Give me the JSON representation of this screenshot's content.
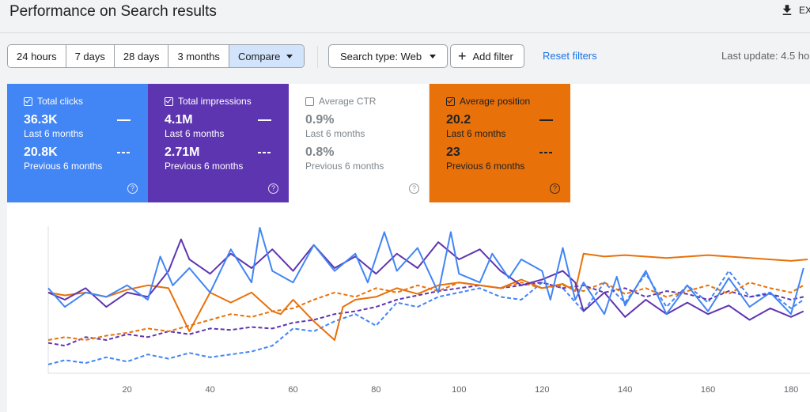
{
  "header": {
    "title": "Performance on Search results",
    "export_label": "EX",
    "export_icon": "download-icon"
  },
  "toolbar": {
    "ranges": [
      "24 hours",
      "7 days",
      "28 days",
      "3 months",
      "Compare"
    ],
    "selected_range": "Compare",
    "search_type": "Search type: Web",
    "add_filter": "Add filter",
    "reset_filters": "Reset filters",
    "last_update": "Last update: 4.5 ho"
  },
  "cards": {
    "clicks": {
      "label": "Total clicks",
      "checked": true,
      "value": "36.3K",
      "value_period": "Last 6 months",
      "prev_value": "20.8K",
      "prev_period": "Previous 6 months",
      "color": "#4285f4"
    },
    "impressions": {
      "label": "Total impressions",
      "checked": true,
      "value": "4.1M",
      "value_period": "Last 6 months",
      "prev_value": "2.71M",
      "prev_period": "Previous 6 months",
      "color": "#5e35b1"
    },
    "ctr": {
      "label": "Average CTR",
      "checked": false,
      "value": "0.9%",
      "value_period": "Last 6 months",
      "prev_value": "0.8%",
      "prev_period": "Previous 6 months",
      "color": "#80868b"
    },
    "position": {
      "label": "Average position",
      "checked": true,
      "value": "20.2",
      "value_period": "Last 6 months",
      "prev_value": "23",
      "prev_period": "Previous 6 months",
      "color": "#e8710a"
    }
  },
  "chart_data": {
    "type": "line",
    "x_ticks": [
      20,
      40,
      60,
      80,
      100,
      120,
      140,
      160,
      180
    ],
    "xlim": [
      1,
      184
    ],
    "ylim": [
      0,
      1
    ],
    "y_axis_labels": "not shown",
    "legend": "metric cards above chart",
    "series": [
      {
        "name": "Total clicks",
        "period": "Last 6 months",
        "style": "solid",
        "color": "#4285f4",
        "x": [
          1,
          5,
          10,
          15,
          20,
          25,
          28,
          31,
          35,
          40,
          45,
          50,
          52,
          55,
          60,
          65,
          70,
          75,
          78,
          82,
          85,
          90,
          95,
          98,
          100,
          105,
          108,
          112,
          115,
          120,
          122,
          125,
          128,
          130,
          135,
          138,
          140,
          145,
          150,
          155,
          160,
          165,
          170,
          175,
          180,
          183
        ],
        "y": [
          0.58,
          0.45,
          0.55,
          0.52,
          0.6,
          0.5,
          0.8,
          0.6,
          0.72,
          0.55,
          0.85,
          0.62,
          1.0,
          0.7,
          0.62,
          0.88,
          0.7,
          0.82,
          0.62,
          0.97,
          0.7,
          0.86,
          0.55,
          0.97,
          0.68,
          0.62,
          0.82,
          0.65,
          0.78,
          0.7,
          0.5,
          0.86,
          0.5,
          0.62,
          0.4,
          0.66,
          0.46,
          0.7,
          0.4,
          0.6,
          0.42,
          0.65,
          0.45,
          0.55,
          0.4,
          0.72
        ]
      },
      {
        "name": "Total impressions",
        "period": "Last 6 months",
        "style": "solid",
        "color": "#5e35b1",
        "x": [
          1,
          5,
          10,
          15,
          20,
          25,
          30,
          33,
          35,
          40,
          45,
          50,
          55,
          60,
          65,
          70,
          75,
          80,
          85,
          90,
          95,
          100,
          105,
          110,
          115,
          120,
          125,
          128,
          130,
          135,
          140,
          145,
          150,
          155,
          160,
          165,
          170,
          175,
          180,
          183
        ],
        "y": [
          0.55,
          0.5,
          0.58,
          0.45,
          0.55,
          0.52,
          0.7,
          0.92,
          0.78,
          0.68,
          0.82,
          0.72,
          0.85,
          0.7,
          0.88,
          0.72,
          0.8,
          0.68,
          0.82,
          0.72,
          0.9,
          0.78,
          0.85,
          0.7,
          0.6,
          0.64,
          0.7,
          0.62,
          0.42,
          0.55,
          0.38,
          0.5,
          0.4,
          0.48,
          0.4,
          0.46,
          0.36,
          0.44,
          0.38,
          0.42
        ]
      },
      {
        "name": "Average position",
        "period": "Last 6 months",
        "style": "solid",
        "color": "#e8710a",
        "x": [
          1,
          5,
          10,
          15,
          20,
          25,
          30,
          33,
          35,
          40,
          45,
          50,
          55,
          57,
          60,
          65,
          70,
          72,
          75,
          80,
          85,
          90,
          95,
          100,
          105,
          110,
          115,
          120,
          125,
          128,
          130,
          135,
          140,
          150,
          160,
          170,
          180,
          184
        ],
        "y": [
          0.55,
          0.53,
          0.55,
          0.52,
          0.57,
          0.6,
          0.58,
          0.4,
          0.28,
          0.55,
          0.48,
          0.55,
          0.42,
          0.4,
          0.5,
          0.35,
          0.22,
          0.45,
          0.5,
          0.52,
          0.58,
          0.54,
          0.6,
          0.62,
          0.6,
          0.58,
          0.64,
          0.58,
          0.61,
          0.56,
          0.82,
          0.8,
          0.81,
          0.79,
          0.81,
          0.79,
          0.77,
          0.78
        ]
      },
      {
        "name": "Total clicks",
        "period": "Previous 6 months",
        "style": "dashed",
        "color": "#4285f4",
        "x": [
          1,
          5,
          10,
          15,
          20,
          25,
          30,
          35,
          40,
          45,
          50,
          55,
          60,
          65,
          70,
          75,
          80,
          85,
          90,
          95,
          100,
          105,
          110,
          115,
          120,
          125,
          130,
          135,
          140,
          145,
          150,
          155,
          160,
          165,
          170,
          175,
          180,
          183
        ],
        "y": [
          0.05,
          0.08,
          0.06,
          0.1,
          0.07,
          0.12,
          0.09,
          0.13,
          0.1,
          0.12,
          0.14,
          0.18,
          0.3,
          0.28,
          0.35,
          0.4,
          0.32,
          0.48,
          0.45,
          0.52,
          0.55,
          0.58,
          0.52,
          0.5,
          0.62,
          0.58,
          0.42,
          0.62,
          0.48,
          0.68,
          0.45,
          0.6,
          0.48,
          0.7,
          0.52,
          0.55,
          0.44,
          0.5
        ]
      },
      {
        "name": "Total impressions",
        "period": "Previous 6 months",
        "style": "dashed",
        "color": "#5e35b1",
        "x": [
          1,
          5,
          10,
          15,
          20,
          25,
          30,
          35,
          40,
          45,
          50,
          55,
          60,
          65,
          70,
          75,
          80,
          85,
          90,
          95,
          100,
          105,
          110,
          115,
          120,
          125,
          130,
          135,
          140,
          145,
          150,
          155,
          160,
          165,
          170,
          175,
          180,
          183
        ],
        "y": [
          0.2,
          0.18,
          0.24,
          0.22,
          0.26,
          0.24,
          0.28,
          0.26,
          0.3,
          0.29,
          0.31,
          0.3,
          0.34,
          0.36,
          0.4,
          0.42,
          0.45,
          0.5,
          0.53,
          0.56,
          0.58,
          0.6,
          0.58,
          0.6,
          0.62,
          0.58,
          0.6,
          0.55,
          0.58,
          0.52,
          0.56,
          0.54,
          0.5,
          0.56,
          0.52,
          0.54,
          0.5,
          0.52
        ]
      },
      {
        "name": "Average position",
        "period": "Previous 6 months",
        "style": "dashed",
        "color": "#e8710a",
        "x": [
          1,
          5,
          10,
          15,
          20,
          25,
          30,
          35,
          40,
          45,
          50,
          55,
          60,
          65,
          70,
          75,
          80,
          85,
          90,
          95,
          100,
          105,
          110,
          115,
          120,
          125,
          130,
          135,
          140,
          145,
          150,
          155,
          160,
          165,
          170,
          175,
          180,
          183
        ],
        "y": [
          0.22,
          0.24,
          0.22,
          0.25,
          0.27,
          0.3,
          0.28,
          0.32,
          0.36,
          0.4,
          0.38,
          0.42,
          0.44,
          0.5,
          0.55,
          0.52,
          0.58,
          0.55,
          0.6,
          0.56,
          0.62,
          0.6,
          0.58,
          0.62,
          0.58,
          0.6,
          0.56,
          0.62,
          0.54,
          0.58,
          0.52,
          0.56,
          0.6,
          0.54,
          0.62,
          0.58,
          0.55,
          0.6
        ]
      }
    ]
  }
}
